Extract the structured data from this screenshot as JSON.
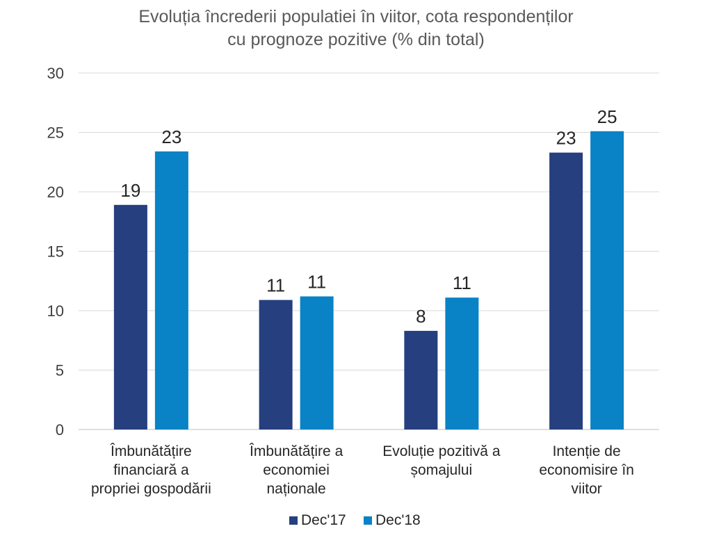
{
  "chart_data": {
    "type": "bar",
    "title": "Evoluția încrederii populatiei în viitor, cota respondenților cu prognoze pozitive (% din total)",
    "title_lines": [
      "Evoluția încrederii populatiei în viitor, cota respondenților",
      "cu prognoze pozitive (% din total)"
    ],
    "categories": [
      [
        "Îmbunătățire",
        "financiară a",
        "propriei gospodării"
      ],
      [
        "Îmbunătățire a",
        "economiei",
        "naționale"
      ],
      [
        "Evoluție pozitivă a",
        "șomajului"
      ],
      [
        "Intenție de",
        "economisire în",
        "viitor"
      ]
    ],
    "series": [
      {
        "name": "Dec'17",
        "color": "#253F7F",
        "values": [
          18.9,
          10.9,
          8.3,
          23.3
        ],
        "labels": [
          "19",
          "11",
          "8",
          "23"
        ]
      },
      {
        "name": "Dec'18",
        "color": "#0A82C6",
        "values": [
          23.4,
          11.2,
          11.1,
          25.1
        ],
        "labels": [
          "23",
          "11",
          "11",
          "25"
        ]
      }
    ],
    "ylim": [
      0,
      30
    ],
    "yticks": [
      0,
      5,
      10,
      15,
      20,
      25,
      30
    ],
    "xlabel": "",
    "ylabel": "",
    "grid": true,
    "legend_position": "bottom"
  }
}
